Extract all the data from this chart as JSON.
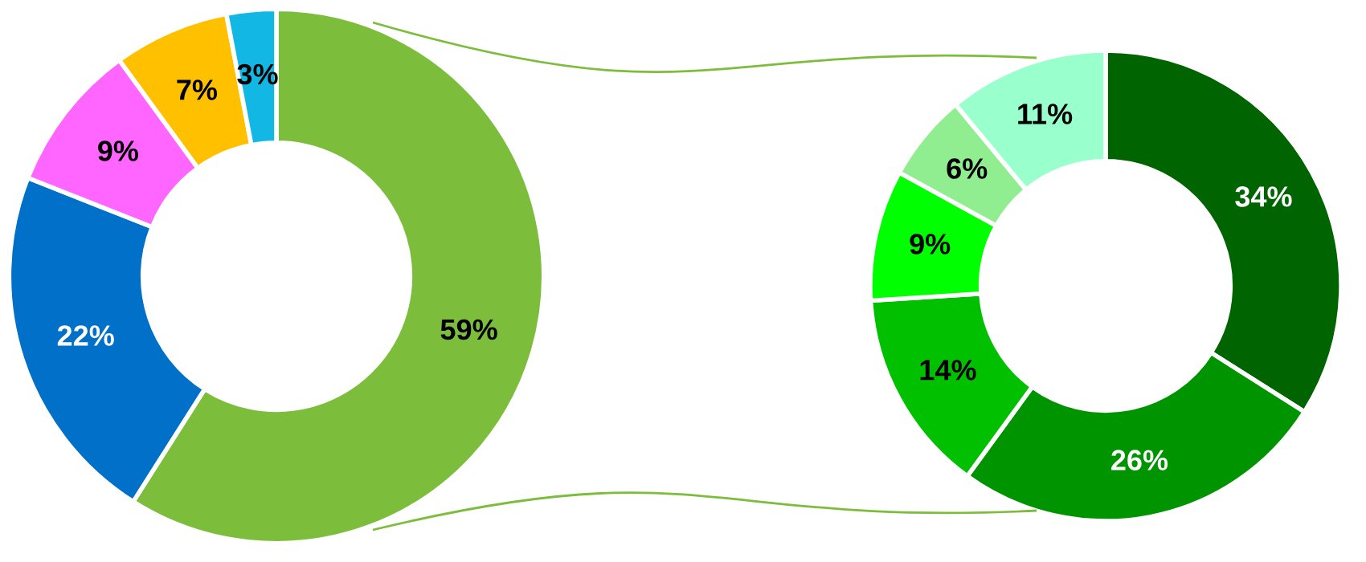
{
  "chart_data": [
    {
      "type": "donut",
      "categories": [
        null,
        null,
        null,
        null,
        null
      ],
      "values": [
        59,
        22,
        9,
        7,
        3
      ],
      "colors": [
        "#7cbd3c",
        "#0070c8",
        "#ff66ff",
        "#ffc000",
        "#12b8e3"
      ],
      "value_labels": [
        "59%",
        "22%",
        "9%",
        "7%",
        "3%"
      ]
    },
    {
      "type": "donut",
      "categories": [
        null,
        null,
        null,
        null,
        null,
        null
      ],
      "values": [
        34,
        26,
        14,
        9,
        6,
        11
      ],
      "colors": [
        "#006400",
        "#009400",
        "#00c000",
        "#00ff00",
        "#90ee90",
        "#99ffcc"
      ],
      "value_labels": [
        "34%",
        "26%",
        "14%",
        "9%",
        "6%",
        "11%"
      ]
    }
  ]
}
